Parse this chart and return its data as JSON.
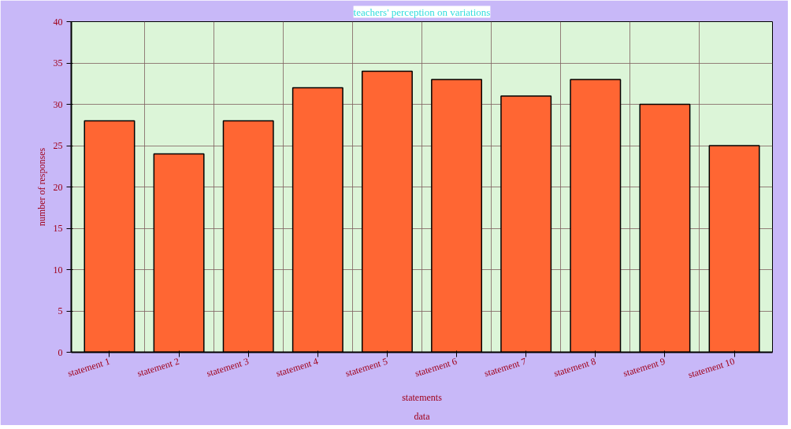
{
  "chart_data": {
    "type": "bar",
    "title": "teachers' perception on variations",
    "xlabel": "statements",
    "ylabel": "number of responses",
    "annotations": [
      "data"
    ],
    "categories": [
      "statement 1",
      "statement 2",
      "statement 3",
      "statement 4",
      "statement 5",
      "statement 6",
      "statement 7",
      "statement 8",
      "statement 9",
      "statement 10"
    ],
    "values": [
      28,
      24,
      28,
      32,
      34,
      33,
      31,
      33,
      30,
      25
    ],
    "color": "#ff6633",
    "ylim": [
      0,
      40
    ],
    "yticks": [
      0,
      5,
      10,
      15,
      20,
      25,
      30,
      35,
      40
    ],
    "grid": true
  }
}
